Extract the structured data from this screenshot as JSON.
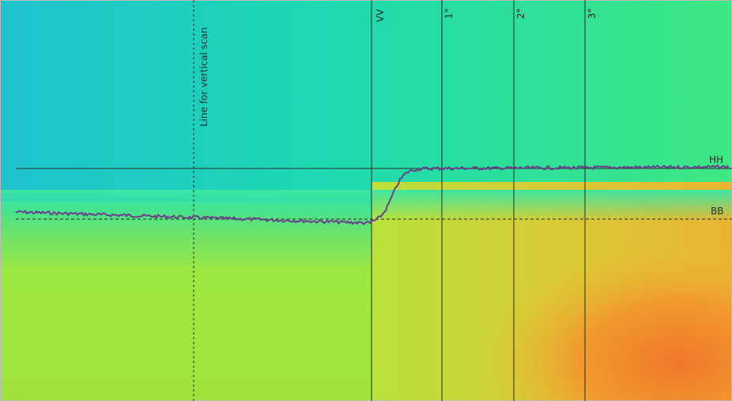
{
  "labels": {
    "scan_line": "Line for vertical scan",
    "vv": "VV",
    "deg1": "1°",
    "deg2": "2°",
    "deg3": "3°",
    "hh": "HH",
    "bb": "BB"
  },
  "colors": {
    "teal": "#1ec9c8",
    "green": "#8ee84a",
    "yellow": "#d6d63a",
    "orange": "#f0862c",
    "profile": "#6a3f8c",
    "line": "#2a2a2a"
  }
}
